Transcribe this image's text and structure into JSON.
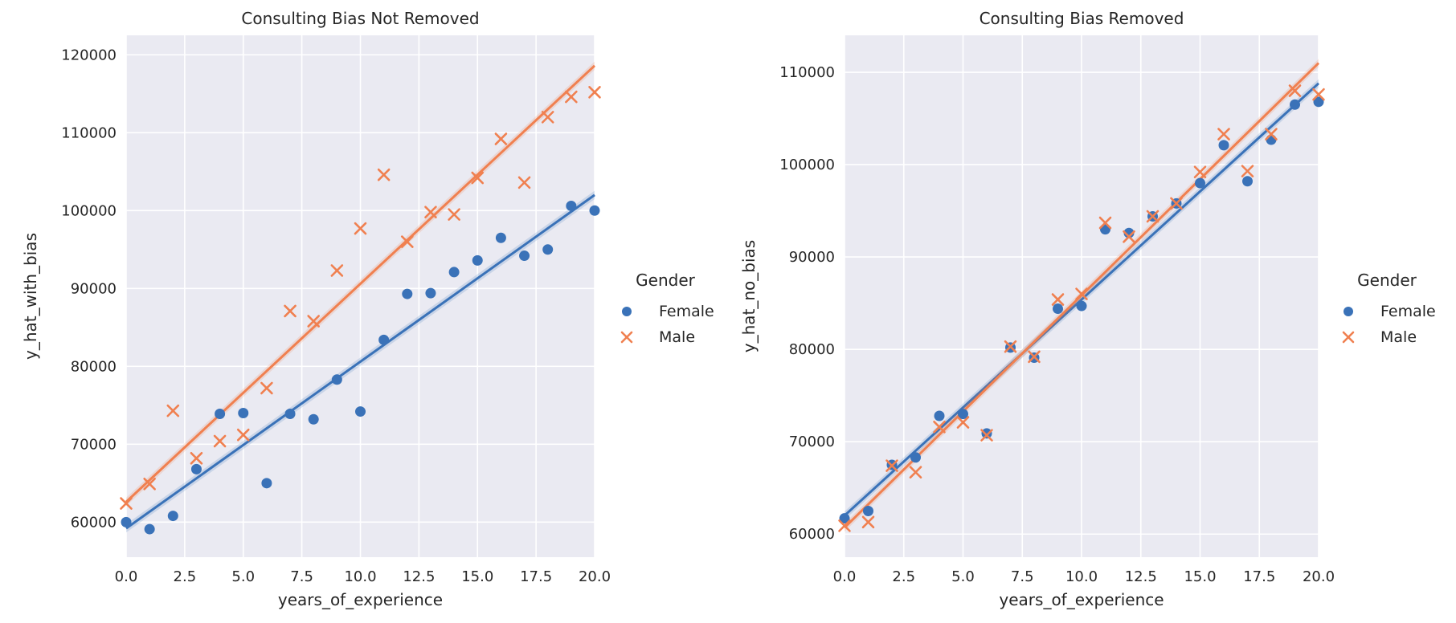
{
  "colors": {
    "female": "#3a72b8",
    "male": "#f08050",
    "panel_bg": "#eaeaf2",
    "grid": "#ffffff"
  },
  "legend": {
    "title": "Gender",
    "entries": [
      {
        "name": "Female",
        "marker": "circle",
        "color": "#3a72b8"
      },
      {
        "name": "Male",
        "marker": "x",
        "color": "#f08050"
      }
    ]
  },
  "chart_data": [
    {
      "type": "scatter",
      "title": "Consulting Bias Not Removed",
      "xlabel": "years_of_experience",
      "ylabel": "y_hat_with_bias",
      "xlim": [
        0,
        20
      ],
      "ylim": [
        55500,
        122500
      ],
      "xticks": [
        0,
        2.5,
        5,
        7.5,
        10,
        12.5,
        15,
        17.5,
        20
      ],
      "xtick_labels": [
        "0.0",
        "2.5",
        "5.0",
        "7.5",
        "10.0",
        "12.5",
        "15.0",
        "17.5",
        "20.0"
      ],
      "yticks": [
        60000,
        70000,
        80000,
        90000,
        100000,
        110000,
        120000
      ],
      "ytick_labels": [
        "60000",
        "70000",
        "80000",
        "90000",
        "100000",
        "110000",
        "120000"
      ],
      "grid": true,
      "legend_position": "right",
      "series": [
        {
          "name": "Female",
          "marker": "circle",
          "x": [
            0,
            1,
            2,
            3,
            4,
            5,
            6,
            7,
            8,
            9,
            10,
            11,
            12,
            13,
            14,
            15,
            16,
            17,
            18,
            19,
            20
          ],
          "y": [
            60000,
            59100,
            60800,
            66800,
            73900,
            74000,
            65000,
            73900,
            73200,
            78300,
            74200,
            83400,
            89300,
            89400,
            92100,
            93600,
            96500,
            94200,
            95000,
            100600,
            100000
          ],
          "fit": [
            59200,
            102000
          ]
        },
        {
          "name": "Male",
          "marker": "x",
          "x": [
            0,
            1,
            2,
            3,
            4,
            5,
            6,
            7,
            8,
            9,
            10,
            11,
            12,
            13,
            14,
            15,
            16,
            17,
            18,
            19,
            20
          ],
          "y": [
            62400,
            64900,
            74300,
            68200,
            70400,
            71200,
            77200,
            87100,
            85800,
            92300,
            97700,
            104600,
            96000,
            99800,
            99500,
            104200,
            109200,
            103600,
            112000,
            114600,
            115200
          ],
          "fit": [
            62600,
            118600
          ]
        }
      ]
    },
    {
      "type": "scatter",
      "title": "Consulting Bias Removed",
      "xlabel": "years_of_experience",
      "ylabel": "y_hat_no_bias",
      "xlim": [
        0,
        20
      ],
      "ylim": [
        57500,
        114000
      ],
      "xticks": [
        0,
        2.5,
        5,
        7.5,
        10,
        12.5,
        15,
        17.5,
        20
      ],
      "xtick_labels": [
        "0.0",
        "2.5",
        "5.0",
        "7.5",
        "10.0",
        "12.5",
        "15.0",
        "17.5",
        "20.0"
      ],
      "yticks": [
        60000,
        70000,
        80000,
        90000,
        100000,
        110000
      ],
      "ytick_labels": [
        "60000",
        "70000",
        "80000",
        "90000",
        "100000",
        "110000"
      ],
      "grid": true,
      "legend_position": "right",
      "series": [
        {
          "name": "Female",
          "marker": "circle",
          "x": [
            0,
            1,
            2,
            3,
            4,
            5,
            6,
            7,
            8,
            9,
            10,
            11,
            12,
            13,
            14,
            15,
            16,
            17,
            18,
            19,
            20
          ],
          "y": [
            61700,
            62500,
            67500,
            68300,
            72800,
            73000,
            70900,
            80200,
            79100,
            84400,
            84700,
            93000,
            92600,
            94400,
            95800,
            98000,
            102100,
            98200,
            102700,
            106500,
            106800
          ],
          "fit": [
            62000,
            108800
          ]
        },
        {
          "name": "Male",
          "marker": "x",
          "x": [
            0,
            1,
            2,
            3,
            4,
            5,
            6,
            7,
            8,
            9,
            10,
            11,
            12,
            13,
            14,
            15,
            16,
            17,
            18,
            19,
            20
          ],
          "y": [
            60900,
            61300,
            67400,
            66700,
            71600,
            72100,
            70700,
            80300,
            79200,
            85400,
            86000,
            93700,
            92200,
            94400,
            95800,
            99200,
            103300,
            99300,
            103300,
            108000,
            107600
          ],
          "fit": [
            60700,
            111000
          ]
        }
      ]
    }
  ]
}
